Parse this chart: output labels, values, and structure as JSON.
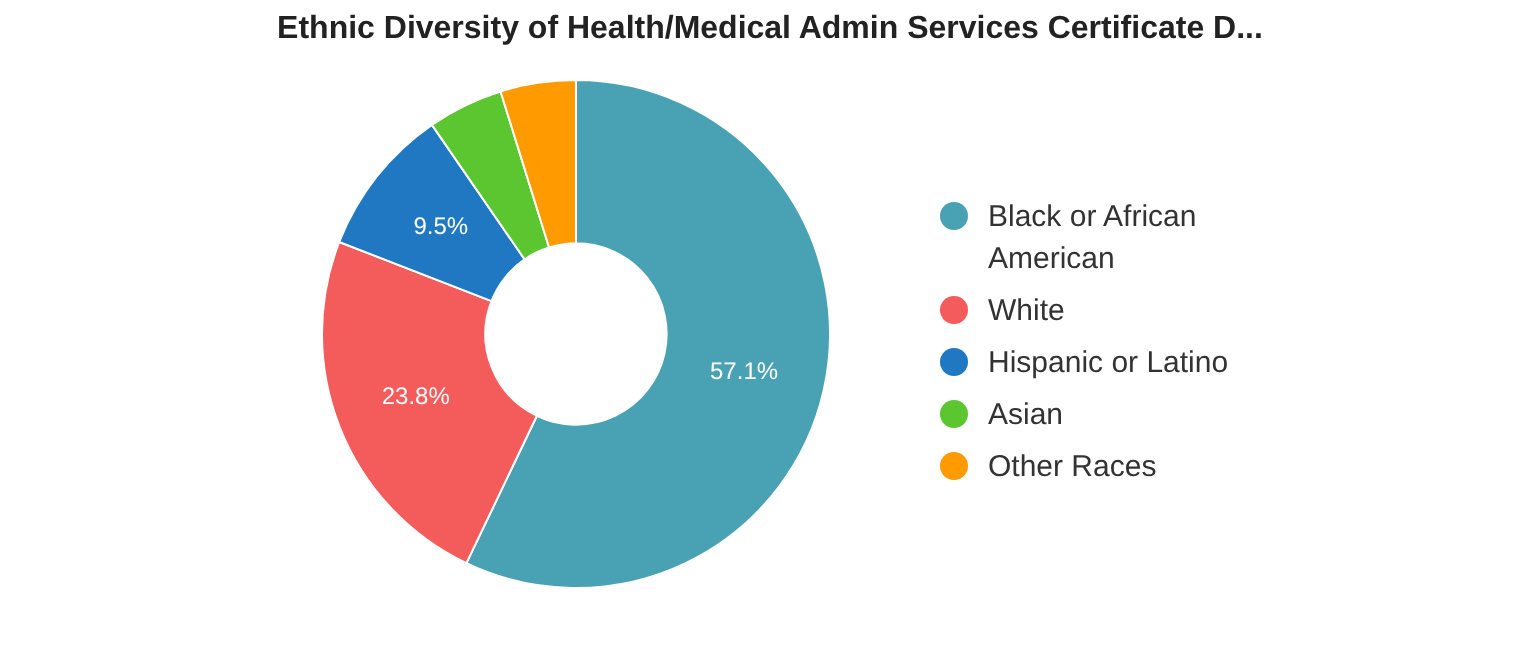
{
  "chart_data": {
    "type": "donut",
    "title": "Ethnic Diversity of Health/Medical Admin Services Certificate D...",
    "categories": [
      "Black or African American",
      "White",
      "Hispanic or Latino",
      "Asian",
      "Other Races"
    ],
    "values": [
      57.1,
      23.8,
      9.5,
      4.8,
      4.8
    ],
    "colors": [
      "#49a1b4",
      "#f45b5b",
      "#1f78c1",
      "#5bc630",
      "#ff9a00"
    ],
    "value_labels": [
      "57.1%",
      "23.8%",
      "9.5%",
      null,
      null
    ],
    "legend": "right"
  }
}
